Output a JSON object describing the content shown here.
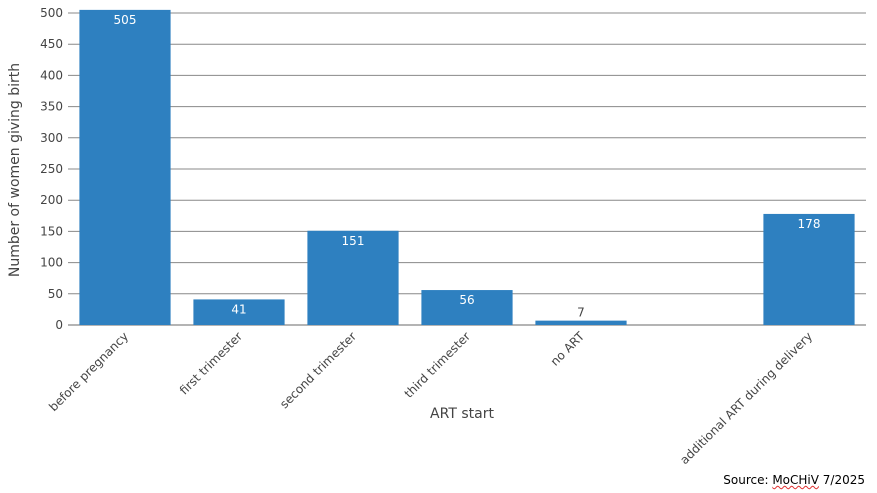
{
  "chart_data": {
    "type": "bar",
    "categories": [
      "before pregnancy",
      "first trimester",
      "second trimester",
      "third trimester",
      "no ART",
      "",
      "additional ART during delivery"
    ],
    "values": [
      505,
      41,
      151,
      56,
      7,
      null,
      178
    ],
    "data_labels": [
      "505",
      "41",
      "151",
      "56",
      "7",
      "",
      "178"
    ],
    "xlabel": "ART start",
    "ylabel": "Number of women giving birth",
    "ylim": [
      0,
      500
    ],
    "yticks": [
      0,
      50,
      100,
      150,
      200,
      250,
      300,
      350,
      400,
      450,
      500
    ],
    "grid": true,
    "bar_color": "#2e80c0",
    "grid_color": "#888888"
  },
  "source": {
    "prefix": "Source: ",
    "name": "MoCHiV",
    "date": " 7/2025"
  }
}
